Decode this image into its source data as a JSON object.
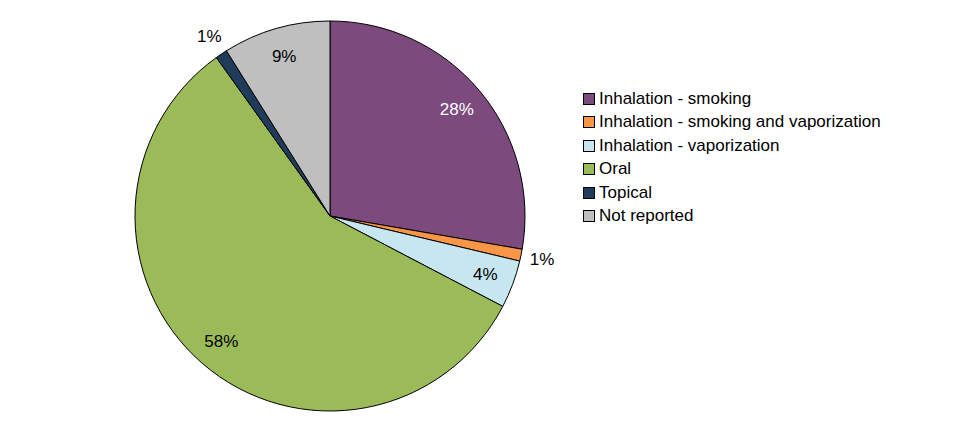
{
  "chart_data": {
    "type": "pie",
    "categories": [
      "Inhalation - smoking",
      "Inhalation - smoking and vaporization",
      "Inhalation - vaporization",
      "Oral",
      "Topical",
      "Not reported"
    ],
    "values": [
      28,
      1,
      4,
      58,
      1,
      9
    ],
    "value_labels": [
      "28%",
      "1%",
      "4%",
      "58%",
      "1%",
      "9%"
    ],
    "colors": [
      "#7d4a7e",
      "#f79646",
      "#c6e6f0",
      "#9bbb59",
      "#1f3d5a",
      "#bfbfbf"
    ],
    "data_labels": true,
    "legend": "right"
  }
}
